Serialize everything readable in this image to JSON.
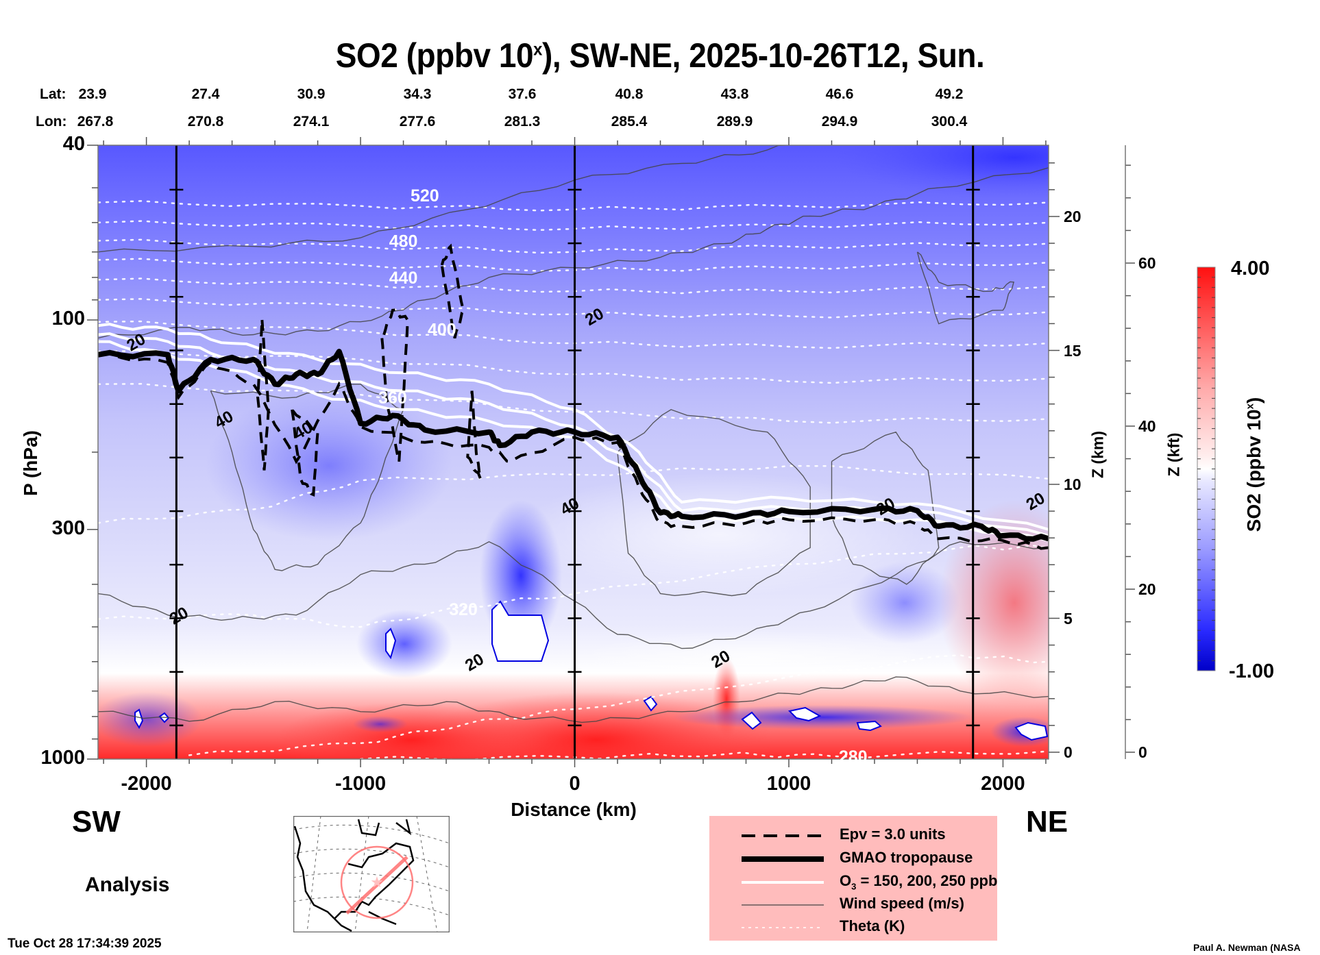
{
  "title": {
    "main": "SO2 (ppbv 10",
    "sup": "x",
    "rest": "), SW-NE, 2025-10-26T12, Sun."
  },
  "lat_row": {
    "label": "Lat:",
    "values": [
      "23.9",
      "27.4",
      "30.9",
      "34.3",
      "37.6",
      "40.8",
      "43.8",
      "46.6",
      "49.2"
    ]
  },
  "lon_row": {
    "label": "Lon:",
    "values": [
      "267.8",
      "270.8",
      "274.1",
      "277.6",
      "281.3",
      "285.4",
      "289.9",
      "294.9",
      "300.4"
    ]
  },
  "direction": {
    "left": "SW",
    "right": "NE"
  },
  "run_type": "Analysis",
  "timestamp": "Tue Oct 28 17:34:39 2025",
  "credit": "Paul A. Newman (NASA",
  "legend": [
    {
      "style": "dashed",
      "label": "Epv = 3.0 units"
    },
    {
      "style": "thick",
      "label": "GMAO tropopause"
    },
    {
      "style": "white",
      "label_pre": "O",
      "label_sub": "3",
      "label_post": " = 150, 200, 250 ppb"
    },
    {
      "style": "thin",
      "label": "Wind speed (m/s)"
    },
    {
      "style": "dotted",
      "label": "Theta (K)"
    }
  ],
  "colors": {
    "cmap_low": "#0000e6",
    "cmap_mid": "#ffffff",
    "cmap_high": "#ff1010",
    "legend_bg": "#ffbcbc",
    "map_track": "#ff7070"
  },
  "chart_data": {
    "type": "heatmap",
    "title": "SO2 (ppbv 10^x), SW-NE, 2025-10-26T12, Sun.",
    "xlabel": "Distance (km)",
    "ylabel": "P (hPa)",
    "y2label": "Z (km)",
    "y3label": "Z (kft)",
    "colorbar_label": "SO2 (ppbv 10^x)",
    "xlim": [
      -2226,
      2213
    ],
    "ylim_hPa": [
      1000,
      40
    ],
    "y_scale": "log",
    "x_ticks": [
      -2000,
      -1000,
      0,
      1000,
      2000
    ],
    "x_tick_labels": [
      "-2000",
      "-1000",
      "0",
      "1000",
      "2000"
    ],
    "y_ticks_hPa": [
      40,
      100,
      300,
      1000
    ],
    "y_tick_labels": [
      "40",
      "100",
      "300",
      "1000"
    ],
    "z_km_ticks": [
      0,
      5,
      10,
      15,
      20
    ],
    "z_km_labels": [
      "0",
      "5",
      "10",
      "15",
      "20"
    ],
    "z_kft_ticks": [
      0,
      20,
      40,
      60
    ],
    "z_kft_labels": [
      "0",
      "20",
      "40",
      "60"
    ],
    "colorbar_range": [
      -1.0,
      4.0
    ],
    "colorbar_labels": [
      "4.00",
      "-1.00"
    ],
    "colorbar_levels": 40,
    "reference_lines_km": [
      -1860,
      0,
      1860
    ],
    "theta_contours_K": [
      {
        "value": 520,
        "pts": [
          [
            -2226,
            54
          ],
          [
            -1000,
            55
          ],
          [
            0,
            56
          ],
          [
            1000,
            55
          ],
          [
            2213,
            54
          ]
        ],
        "label_x": -700,
        "label_p": 52
      },
      {
        "value": 500,
        "pts": [
          [
            -2226,
            60
          ],
          [
            -1000,
            61
          ],
          [
            0,
            62
          ],
          [
            1000,
            61
          ],
          [
            2213,
            60
          ]
        ]
      },
      {
        "value": 480,
        "pts": [
          [
            -2226,
            66
          ],
          [
            -1000,
            68
          ],
          [
            0,
            70
          ],
          [
            1000,
            68
          ],
          [
            2213,
            67
          ]
        ],
        "label_x": -800,
        "label_p": 66
      },
      {
        "value": 460,
        "pts": [
          [
            -2226,
            73
          ],
          [
            -1000,
            75
          ],
          [
            0,
            77
          ],
          [
            1000,
            76
          ],
          [
            2213,
            74
          ]
        ]
      },
      {
        "value": 440,
        "pts": [
          [
            -2226,
            81
          ],
          [
            -1000,
            83
          ],
          [
            0,
            86
          ],
          [
            1000,
            86
          ],
          [
            2213,
            84
          ]
        ],
        "label_x": -800,
        "label_p": 80
      },
      {
        "value": 420,
        "pts": [
          [
            -2226,
            90
          ],
          [
            -1000,
            93
          ],
          [
            0,
            97
          ],
          [
            1000,
            98
          ],
          [
            2213,
            96
          ]
        ]
      },
      {
        "value": 400,
        "pts": [
          [
            -2226,
            101
          ],
          [
            -1000,
            106
          ],
          [
            0,
            113
          ],
          [
            1000,
            115
          ],
          [
            2213,
            113
          ]
        ],
        "label_x": -620,
        "label_p": 105
      },
      {
        "value": 380,
        "pts": [
          [
            -2226,
            118
          ],
          [
            -1000,
            123
          ],
          [
            0,
            133
          ],
          [
            1000,
            138
          ],
          [
            2213,
            136
          ]
        ]
      },
      {
        "value": 360,
        "pts": [
          [
            -2226,
            140
          ],
          [
            -1000,
            148
          ],
          [
            0,
            162
          ],
          [
            1000,
            170
          ],
          [
            2213,
            168
          ]
        ],
        "label_x": -850,
        "label_p": 150
      },
      {
        "value": 340,
        "pts": [
          [
            -2226,
            290
          ],
          [
            -1500,
            270
          ],
          [
            -1000,
            232
          ],
          [
            0,
            225
          ],
          [
            1000,
            215
          ],
          [
            2213,
            230
          ]
        ]
      },
      {
        "value": 320,
        "pts": [
          [
            -2226,
            480
          ],
          [
            -1500,
            470
          ],
          [
            -1000,
            500
          ],
          [
            -500,
            450
          ],
          [
            0,
            420
          ],
          [
            1000,
            360
          ],
          [
            1800,
            330
          ],
          [
            2213,
            330
          ]
        ],
        "label_x": -520,
        "label_p": 455
      },
      {
        "value": 300,
        "pts": [
          [
            -1800,
            980
          ],
          [
            -1000,
            920
          ],
          [
            -500,
            830
          ],
          [
            0,
            770
          ],
          [
            1000,
            650
          ],
          [
            1800,
            580
          ],
          [
            2213,
            600
          ]
        ]
      },
      {
        "value": 280,
        "pts": [
          [
            -1000,
            1000
          ],
          [
            0,
            990
          ],
          [
            700,
            975
          ],
          [
            1200,
            985
          ],
          [
            2213,
            960
          ]
        ],
        "label_x": 1300,
        "label_p": 985
      }
    ],
    "wind_speed_labels_ms": [
      {
        "value": 20,
        "x": -2050,
        "p": 112
      },
      {
        "value": 40,
        "x": -1640,
        "p": 168
      },
      {
        "value": 40,
        "x": -1270,
        "p": 178
      },
      {
        "value": 40,
        "x": -25,
        "p": 265
      },
      {
        "value": 20,
        "x": 90,
        "p": 98
      },
      {
        "value": 20,
        "x": -1850,
        "p": 470
      },
      {
        "value": 20,
        "x": -470,
        "p": 600
      },
      {
        "value": 20,
        "x": 680,
        "p": 590
      },
      {
        "value": 20,
        "x": 1450,
        "p": 265
      },
      {
        "value": 20,
        "x": 2150,
        "p": 258
      }
    ],
    "tropopause_hPa": [
      [
        -2226,
        120
      ],
      [
        -1900,
        120
      ],
      [
        -1850,
        145
      ],
      [
        -1700,
        123
      ],
      [
        -1500,
        123
      ],
      [
        -1400,
        140
      ],
      [
        -1300,
        133
      ],
      [
        -1200,
        133
      ],
      [
        -1100,
        118
      ],
      [
        -1000,
        172
      ],
      [
        -850,
        165
      ],
      [
        -700,
        178
      ],
      [
        -400,
        180
      ],
      [
        -350,
        193
      ],
      [
        -200,
        180
      ],
      [
        0,
        180
      ],
      [
        200,
        185
      ],
      [
        300,
        225
      ],
      [
        400,
        275
      ],
      [
        500,
        280
      ],
      [
        800,
        278
      ],
      [
        1000,
        273
      ],
      [
        1400,
        270
      ],
      [
        1600,
        272
      ],
      [
        1700,
        295
      ],
      [
        1900,
        295
      ],
      [
        2000,
        310
      ],
      [
        2213,
        315
      ]
    ],
    "epv3_hPa": [
      [
        -2226,
        120
      ],
      [
        -1900,
        125
      ],
      [
        -1850,
        150
      ],
      [
        -1700,
        125
      ],
      [
        -1500,
        140
      ],
      [
        -1300,
        210
      ],
      [
        -1100,
        140
      ],
      [
        -1000,
        175
      ],
      [
        -700,
        190
      ],
      [
        -400,
        195
      ],
      [
        -300,
        210
      ],
      [
        0,
        185
      ],
      [
        200,
        190
      ],
      [
        300,
        240
      ],
      [
        400,
        290
      ],
      [
        500,
        295
      ],
      [
        800,
        290
      ],
      [
        1000,
        285
      ],
      [
        1400,
        285
      ],
      [
        1600,
        292
      ],
      [
        1700,
        315
      ],
      [
        2000,
        318
      ],
      [
        2213,
        330
      ]
    ],
    "o3_contours_ppb": [
      {
        "value": 150,
        "pts": [
          [
            -2226,
            103
          ],
          [
            -1900,
            105
          ],
          [
            -1600,
            113
          ],
          [
            -1200,
            123
          ],
          [
            -800,
            132
          ],
          [
            -400,
            140
          ],
          [
            0,
            160
          ],
          [
            300,
            200
          ],
          [
            500,
            260
          ],
          [
            1000,
            255
          ],
          [
            1600,
            262
          ],
          [
            2213,
            300
          ]
        ]
      },
      {
        "value": 200,
        "pts": [
          [
            -2226,
            108
          ],
          [
            -1900,
            112
          ],
          [
            -1600,
            122
          ],
          [
            -1200,
            135
          ],
          [
            -800,
            145
          ],
          [
            -400,
            155
          ],
          [
            0,
            175
          ],
          [
            300,
            215
          ],
          [
            500,
            272
          ],
          [
            1000,
            268
          ],
          [
            1600,
            272
          ],
          [
            2213,
            310
          ]
        ]
      },
      {
        "value": 250,
        "pts": [
          [
            -2226,
            112
          ],
          [
            -1900,
            120
          ],
          [
            -1600,
            130
          ],
          [
            -1200,
            148
          ],
          [
            -800,
            160
          ],
          [
            -400,
            170
          ],
          [
            0,
            185
          ],
          [
            300,
            230
          ],
          [
            500,
            285
          ],
          [
            1000,
            282
          ],
          [
            1600,
            285
          ],
          [
            2213,
            318
          ]
        ]
      }
    ]
  },
  "inset_map": {
    "label": "track-map"
  }
}
